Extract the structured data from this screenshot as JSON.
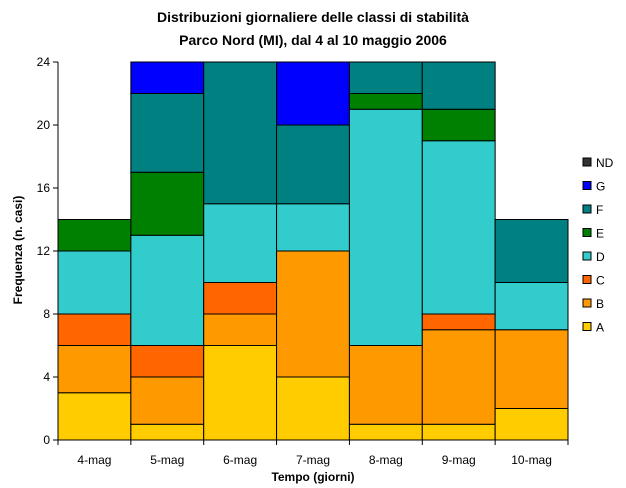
{
  "chart_data": {
    "type": "bar",
    "stacked": true,
    "title": "Distribuzioni giornaliere delle classi di stabilità",
    "subtitle": "Parco Nord (MI), dal 4 al 10 maggio 2006",
    "xlabel": "Tempo (giorni)",
    "ylabel": "Frequenza (n. casi)",
    "ylim": [
      0,
      24
    ],
    "yticks": [
      "0",
      "4",
      "8",
      "12",
      "16",
      "20",
      "24"
    ],
    "categories": [
      "4-mag",
      "5-mag",
      "6-mag",
      "7-mag",
      "8-mag",
      "9-mag",
      "10-mag"
    ],
    "legend_position": "right",
    "series": [
      {
        "name": "A",
        "color": "#ffcc00",
        "values": [
          3,
          1,
          6,
          4,
          1,
          1,
          2
        ]
      },
      {
        "name": "B",
        "color": "#ff9900",
        "values": [
          3,
          3,
          2,
          8,
          5,
          6,
          5
        ]
      },
      {
        "name": "C",
        "color": "#ff6600",
        "values": [
          2,
          2,
          2,
          0,
          0,
          1,
          0
        ]
      },
      {
        "name": "D",
        "color": "#33cccc",
        "values": [
          4,
          7,
          5,
          3,
          15,
          11,
          3
        ]
      },
      {
        "name": "E",
        "color": "#008000",
        "values": [
          2,
          4,
          0,
          0,
          1,
          2,
          0
        ]
      },
      {
        "name": "F",
        "color": "#008080",
        "values": [
          0,
          5,
          9,
          5,
          2,
          3,
          4
        ]
      },
      {
        "name": "G",
        "color": "#0000ff",
        "values": [
          0,
          2,
          0,
          4,
          0,
          0,
          0
        ]
      },
      {
        "name": "ND",
        "color": "#333333",
        "values": [
          0,
          0,
          0,
          0,
          0,
          0,
          0
        ]
      }
    ]
  }
}
